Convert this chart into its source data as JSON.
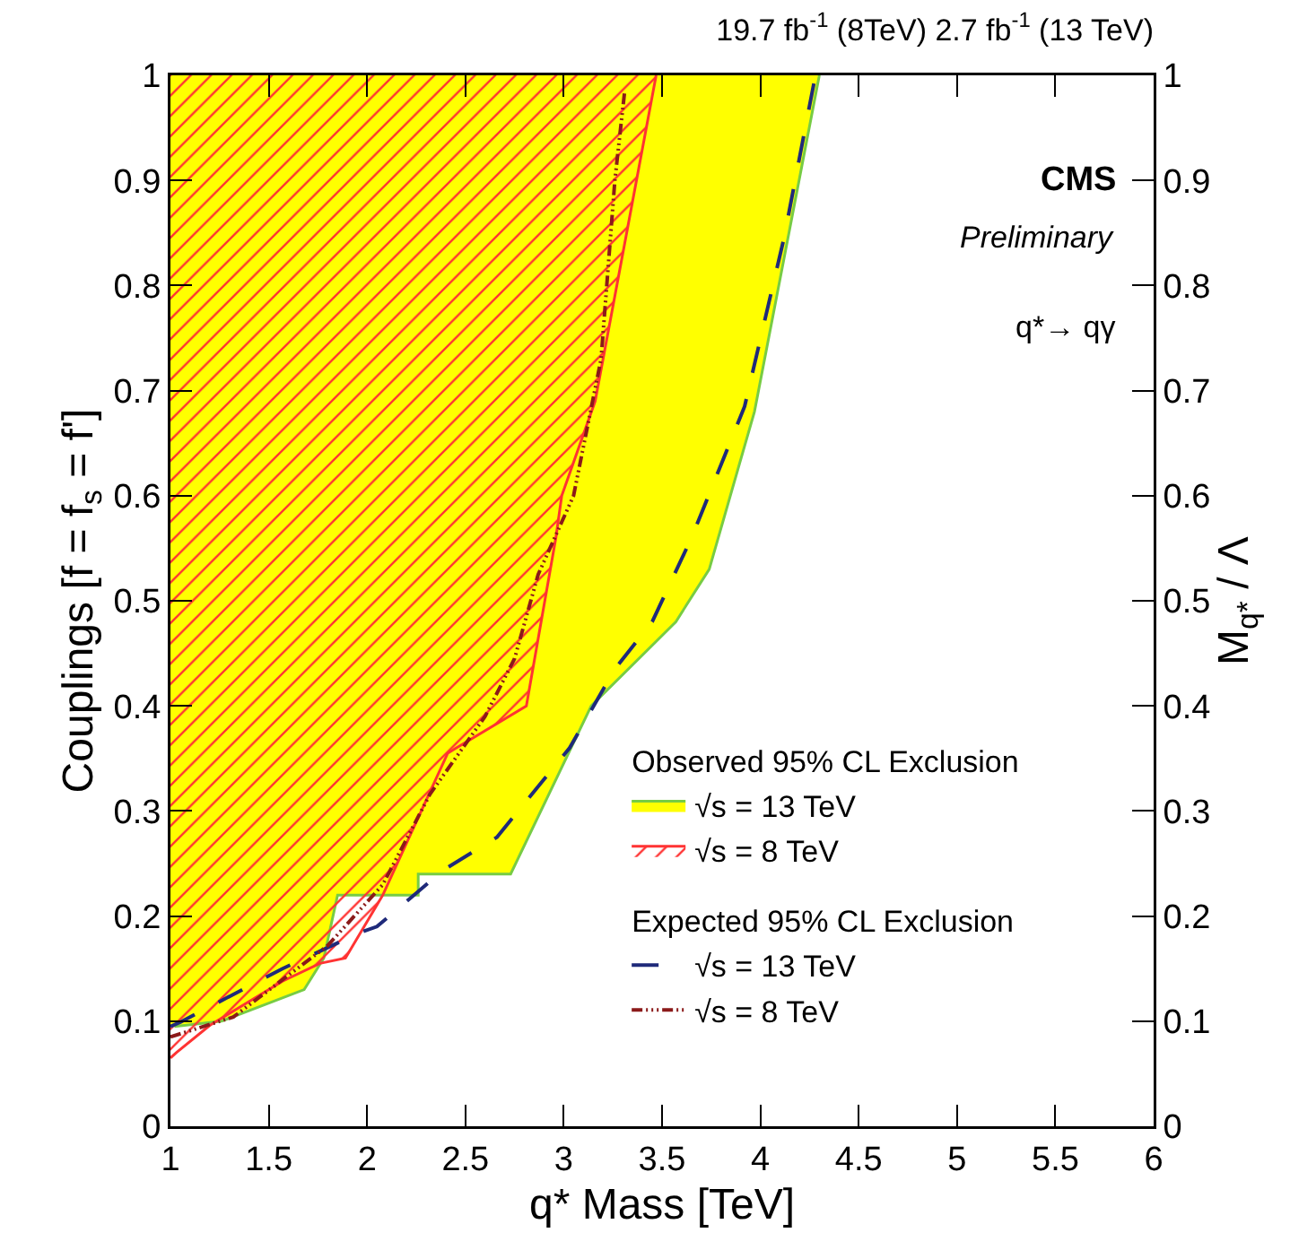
{
  "chart_data": {
    "type": "area",
    "title": "19.7 fb$^{-1}$ (8TeV) 2.7 fb$^{-1}$ (13 TeV)",
    "xlabel": "q* Mass [TeV]",
    "ylabel": "Couplings [f = f$_{s}$ = f']",
    "y2label": "M$_{q*}$ / Λ",
    "annotations": [
      "CMS",
      "Preliminary",
      "q*→ qγ",
      "Observed 95% CL Exclusion",
      "Expected 95% CL Exclusion"
    ],
    "xlim": [
      1,
      6
    ],
    "xticks": [
      1,
      1.5,
      2,
      2.5,
      3,
      3.5,
      4,
      4.5,
      5,
      5.5,
      6
    ],
    "ylim": [
      0,
      1
    ],
    "yticks": [
      0,
      0.1,
      0.2,
      0.3,
      0.4,
      0.5,
      0.6,
      0.7,
      0.8,
      0.9,
      1
    ],
    "y2lim": [
      0,
      1
    ],
    "y2ticks": [
      0,
      0.1,
      0.2,
      0.3,
      0.4,
      0.5,
      0.6,
      0.7,
      0.8,
      0.9,
      1
    ],
    "grid": false,
    "legend": "bottom right",
    "series": [
      {
        "name": "√s = 13 TeV",
        "color": "#ffff00",
        "x": [
          1.02,
          1.26,
          1.68,
          1.78,
          1.85,
          2.26,
          2.26,
          2.73,
          3.14,
          3.57,
          3.74,
          3.97,
          4.3
        ],
        "values": [
          0.095,
          0.1,
          0.13,
          0.16,
          0.22,
          0.22,
          0.24,
          0.24,
          0.4,
          0.48,
          0.53,
          0.68,
          1
        ]
      },
      {
        "name": "√s = 8 TeV",
        "color": "#ff3333",
        "x": [
          1.0,
          1.03,
          1.2,
          1.57,
          1.76,
          1.89,
          2.08,
          2.41,
          2.81,
          2.96,
          2.99,
          3.16,
          3.47
        ],
        "values": [
          0.065,
          0.07,
          0.096,
          0.138,
          0.155,
          0.16,
          0.22,
          0.355,
          0.4,
          0.56,
          0.6,
          0.69,
          1
        ]
      },
      {
        "name": "√s = 13 TeV",
        "type": "line",
        "line_style": "dashed",
        "color": "#1f2a7a",
        "x": [
          1.0,
          1.05,
          1.57,
          1.96,
          2.05,
          2.39,
          2.66,
          3.03,
          3.26,
          3.45,
          3.65,
          3.92,
          4.12,
          4.28
        ],
        "values": [
          0.095,
          0.099,
          0.15,
          0.184,
          0.19,
          0.244,
          0.275,
          0.36,
          0.435,
          0.48,
          0.56,
          0.685,
          0.845,
          1
        ]
      },
      {
        "name": "√s = 8 TeV",
        "type": "line",
        "line_style": "dotted",
        "color": "#8b1a1a",
        "x": [
          1.0,
          1.32,
          1.8,
          2.08,
          2.32,
          2.6,
          2.75,
          2.87,
          3.05,
          3.19,
          3.26,
          3.31
        ],
        "values": [
          0.085,
          0.104,
          0.172,
          0.23,
          0.316,
          0.39,
          0.445,
          0.525,
          0.6,
          0.73,
          0.9,
          0.985
        ]
      }
    ]
  }
}
